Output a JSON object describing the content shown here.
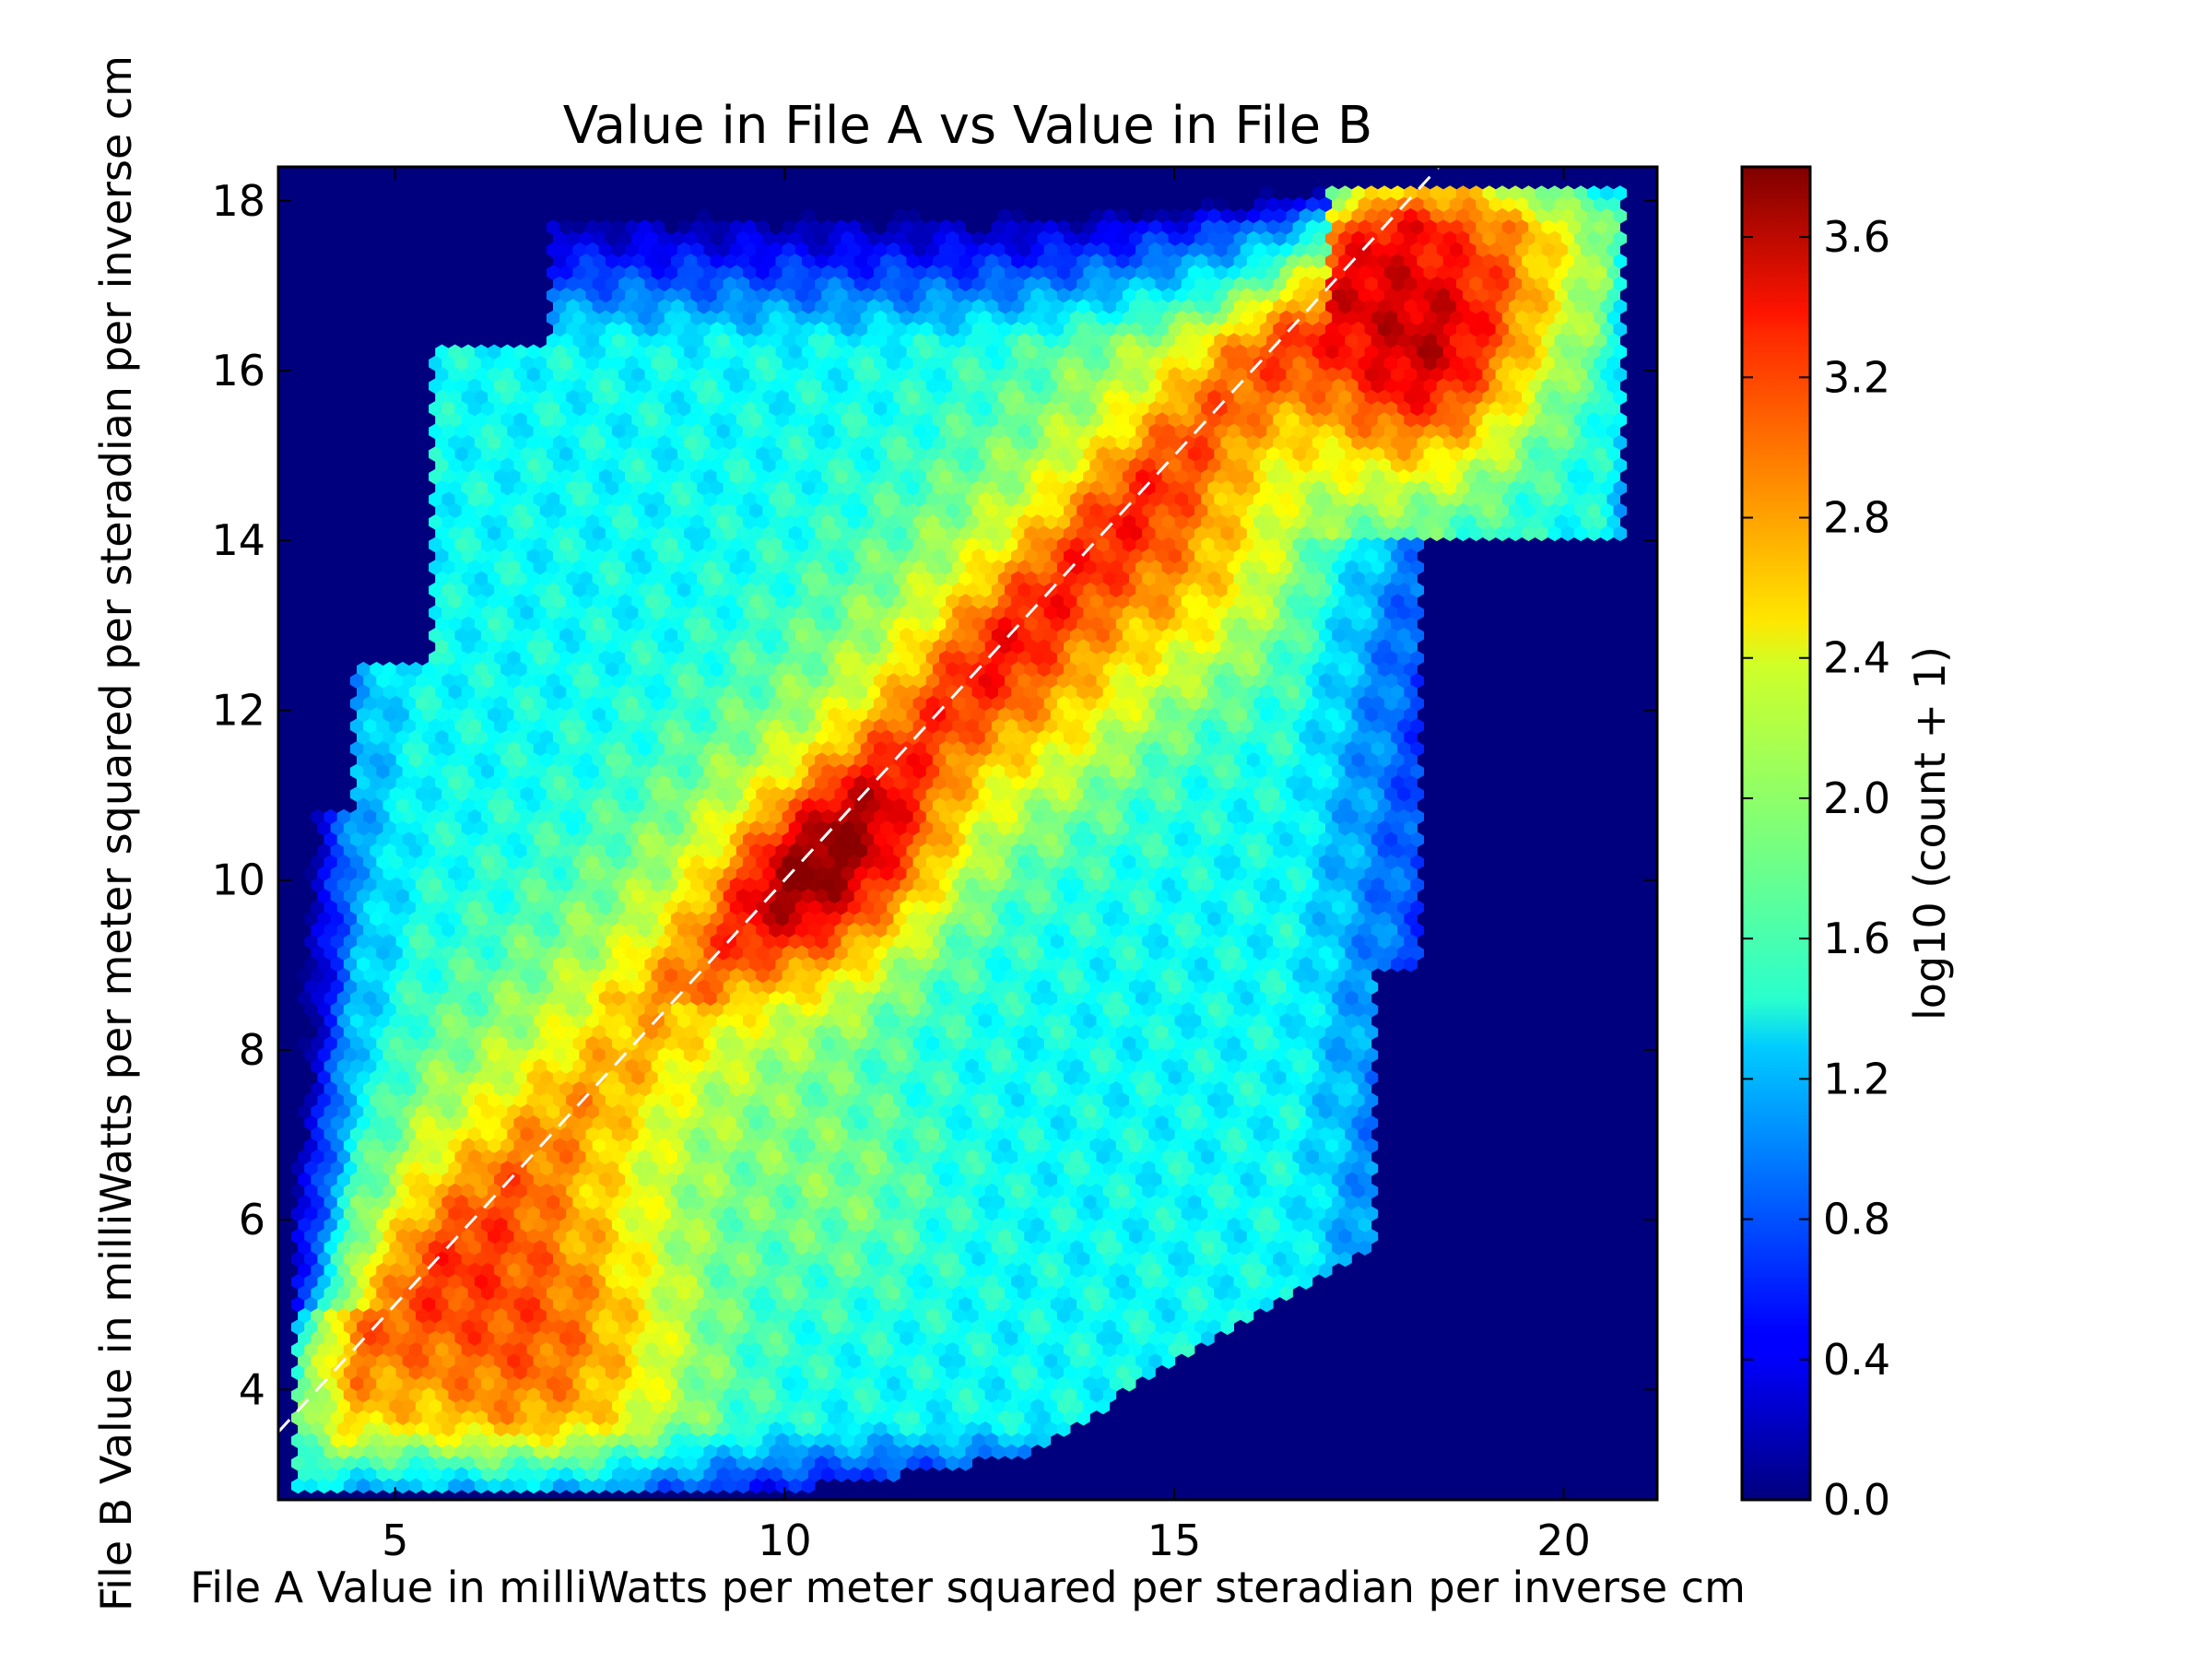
{
  "chart_data": {
    "type": "heatmap",
    "subtype": "hexbin",
    "title": "Value in File A vs Value in File B",
    "xlabel": "File A Value in milliWatts per meter squared per steradian per inverse cm",
    "ylabel": "File B Value in milliWatts per meter squared per steradian per inverse cm",
    "xlim": [
      3.5,
      21.2
    ],
    "ylim": [
      2.7,
      18.4
    ],
    "xticks": [
      5,
      10,
      15,
      20
    ],
    "yticks": [
      4,
      6,
      8,
      10,
      12,
      14,
      16,
      18
    ],
    "colorbar": {
      "label": "log10 (count + 1)",
      "min": 0.0,
      "max": 3.8,
      "ticks": [
        0.0,
        0.4,
        0.8,
        1.2,
        1.6,
        2.0,
        2.4,
        2.8,
        3.2,
        3.6
      ],
      "tick_labels": [
        "0.0",
        "0.4",
        "0.8",
        "1.2",
        "1.6",
        "2.0",
        "2.4",
        "2.8",
        "3.2",
        "3.6"
      ],
      "colormap": "jet"
    },
    "reference_line": {
      "style": "dashed",
      "color": "#ffffff",
      "slope": 1,
      "intercept": 0
    },
    "background_color": "#00007f",
    "density_peaks": [
      {
        "x": 18.2,
        "y": 16.0,
        "value": 3.75
      },
      {
        "x": 11.0,
        "y": 10.4,
        "value": 3.0
      },
      {
        "x": 10.0,
        "y": 9.5,
        "value": 3.0
      },
      {
        "x": 15.5,
        "y": 13.9,
        "value": 3.0
      },
      {
        "x": 7.0,
        "y": 4.3,
        "value": 2.9
      }
    ]
  }
}
